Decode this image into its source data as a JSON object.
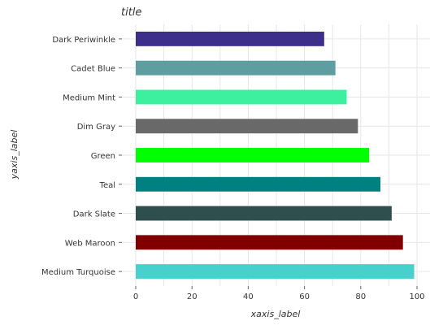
{
  "chart_data": {
    "type": "bar",
    "orientation": "horizontal",
    "title": "title",
    "xlabel": "xaxis_label",
    "ylabel": "yaxis_label",
    "xlim": [
      0,
      100
    ],
    "xticks": [
      0,
      20,
      40,
      60,
      80,
      100
    ],
    "grid": true,
    "categories": [
      "Medium Turquoise",
      "Web Maroon",
      "Dark Slate",
      "Teal",
      "Green",
      "Dim Gray",
      "Medium Mint",
      "Cadet Blue",
      "Dark Periwinkle"
    ],
    "values": [
      99,
      95,
      91,
      87,
      83,
      79,
      75,
      71,
      67
    ],
    "colors": [
      "#48d1cc",
      "#800000",
      "#2f4f4f",
      "#008080",
      "#00ff00",
      "#696969",
      "#3cf0a0",
      "#5f9ea0",
      "#3d2e8c"
    ]
  }
}
